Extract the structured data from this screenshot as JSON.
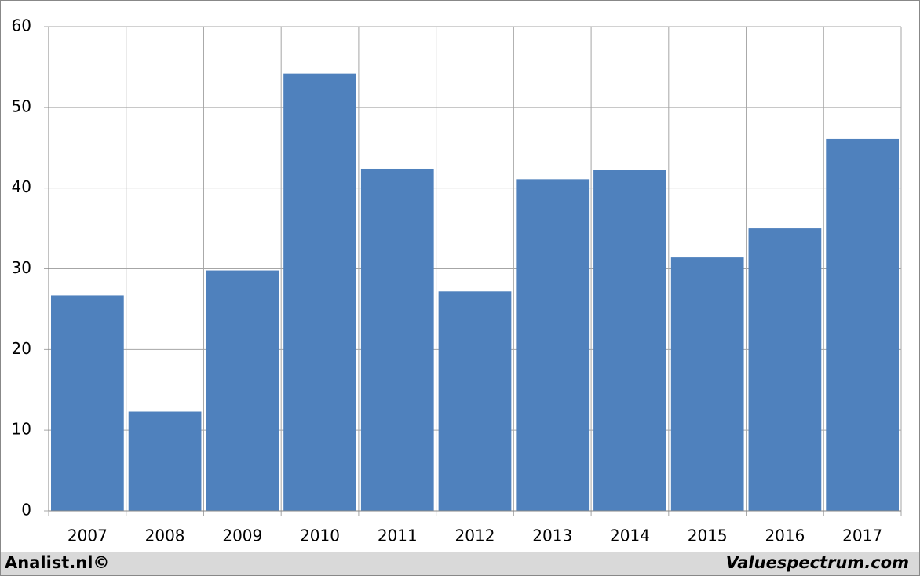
{
  "chart_data": {
    "type": "bar",
    "categories": [
      "2007",
      "2008",
      "2009",
      "2010",
      "2011",
      "2012",
      "2013",
      "2014",
      "2015",
      "2016",
      "2017"
    ],
    "values": [
      26.7,
      12.3,
      29.8,
      54.2,
      42.4,
      27.2,
      41.1,
      42.3,
      31.4,
      35.0,
      46.1
    ],
    "color": "#4f81bd",
    "ylim": [
      0,
      60
    ],
    "yticks": [
      0,
      10,
      20,
      30,
      40,
      50,
      60
    ],
    "grid": true,
    "footer_left": "Analist.nl©",
    "footer_right": "Valuespectrum.com"
  }
}
